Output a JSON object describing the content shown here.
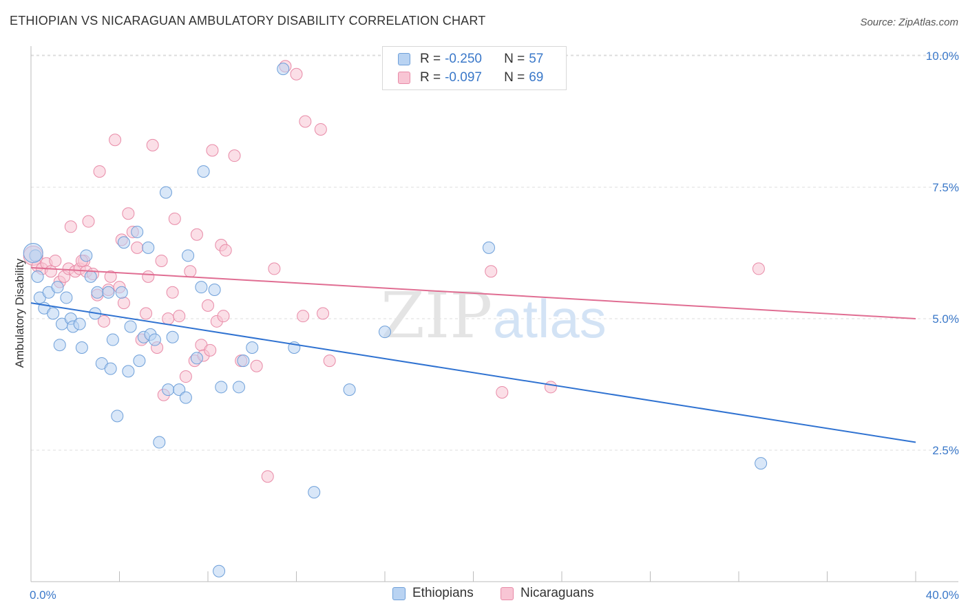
{
  "title": "ETHIOPIAN VS NICARAGUAN AMBULATORY DISABILITY CORRELATION CHART",
  "source": "Source: ZipAtlas.com",
  "watermark": {
    "zip": "ZIP",
    "atlas": "atlas"
  },
  "legend": {
    "rows": [
      {
        "r_label": "R = ",
        "r_value": "-0.250",
        "n_label": "N = ",
        "n_value": "57"
      },
      {
        "r_label": "R = ",
        "r_value": "-0.097",
        "n_label": "N = ",
        "n_value": "69"
      }
    ]
  },
  "colors": {
    "ethiopians_fill": "#b9d3f2",
    "ethiopians_stroke": "#6d9fd9",
    "ethiopians_line": "#2f72d1",
    "nicaraguans_fill": "#f8c5d4",
    "nicaraguans_stroke": "#e88aa7",
    "nicaraguans_line": "#e06d92",
    "tick_text": "#3a78c9"
  },
  "chart_data": {
    "type": "scatter",
    "title": "ETHIOPIAN VS NICARAGUAN AMBULATORY DISABILITY CORRELATION CHART",
    "xlabel": "",
    "ylabel": "Ambulatory Disability",
    "xlim": [
      0,
      40
    ],
    "ylim": [
      0,
      10.5
    ],
    "x_tick_labels": [
      "0.0%",
      "40.0%"
    ],
    "y_ticks": [
      2.5,
      5.0,
      7.5,
      10.0
    ],
    "y_tick_labels": [
      "2.5%",
      "5.0%",
      "7.5%",
      "10.0%"
    ],
    "grid": true,
    "legend_position": "top-center",
    "series": [
      {
        "name": "Ethiopians",
        "r": -0.25,
        "n": 57,
        "trend": {
          "x": [
            0,
            40
          ],
          "y": [
            5.3,
            2.65
          ]
        },
        "points": [
          [
            0.2,
            6.2
          ],
          [
            0.3,
            5.8
          ],
          [
            0.4,
            5.4
          ],
          [
            0.6,
            5.2
          ],
          [
            0.8,
            5.5
          ],
          [
            1.0,
            5.1
          ],
          [
            1.2,
            5.6
          ],
          [
            1.3,
            4.5
          ],
          [
            1.4,
            4.9
          ],
          [
            1.6,
            5.4
          ],
          [
            1.8,
            5.0
          ],
          [
            1.9,
            4.85
          ],
          [
            2.2,
            4.9
          ],
          [
            2.3,
            4.45
          ],
          [
            2.5,
            6.2
          ],
          [
            2.7,
            5.8
          ],
          [
            2.9,
            5.1
          ],
          [
            3.0,
            5.5
          ],
          [
            3.2,
            4.15
          ],
          [
            3.5,
            5.5
          ],
          [
            3.6,
            4.05
          ],
          [
            3.7,
            4.6
          ],
          [
            3.9,
            3.15
          ],
          [
            4.1,
            5.5
          ],
          [
            4.2,
            6.45
          ],
          [
            4.4,
            4.0
          ],
          [
            4.5,
            4.85
          ],
          [
            4.8,
            6.65
          ],
          [
            4.9,
            4.2
          ],
          [
            5.1,
            4.65
          ],
          [
            5.3,
            6.35
          ],
          [
            5.4,
            4.7
          ],
          [
            5.6,
            4.6
          ],
          [
            5.8,
            2.65
          ],
          [
            6.1,
            7.4
          ],
          [
            6.2,
            3.65
          ],
          [
            6.4,
            4.65
          ],
          [
            6.7,
            3.65
          ],
          [
            7.0,
            3.5
          ],
          [
            7.1,
            6.2
          ],
          [
            7.5,
            4.25
          ],
          [
            7.7,
            5.6
          ],
          [
            7.8,
            7.8
          ],
          [
            8.3,
            5.55
          ],
          [
            8.5,
            0.2
          ],
          [
            8.6,
            3.7
          ],
          [
            9.4,
            3.7
          ],
          [
            9.6,
            4.2
          ],
          [
            10.0,
            4.45
          ],
          [
            11.4,
            9.75
          ],
          [
            11.9,
            4.45
          ],
          [
            12.8,
            1.7
          ],
          [
            14.4,
            3.65
          ],
          [
            16.0,
            4.75
          ],
          [
            20.7,
            6.35
          ],
          [
            33.0,
            2.25
          ],
          [
            0.1,
            6.25
          ]
        ]
      },
      {
        "name": "Nicaraguans",
        "r": -0.097,
        "n": 69,
        "trend": {
          "x": [
            0,
            40
          ],
          "y": [
            5.97,
            5.0
          ]
        },
        "points": [
          [
            0.1,
            6.2
          ],
          [
            0.3,
            6.0
          ],
          [
            0.5,
            5.95
          ],
          [
            0.7,
            6.05
          ],
          [
            0.9,
            5.9
          ],
          [
            1.1,
            6.1
          ],
          [
            1.3,
            5.7
          ],
          [
            1.5,
            5.8
          ],
          [
            1.7,
            5.95
          ],
          [
            1.8,
            6.75
          ],
          [
            2.0,
            5.9
          ],
          [
            2.2,
            5.95
          ],
          [
            2.4,
            6.1
          ],
          [
            2.5,
            5.9
          ],
          [
            2.6,
            6.85
          ],
          [
            2.8,
            5.85
          ],
          [
            3.0,
            5.45
          ],
          [
            3.1,
            7.8
          ],
          [
            3.3,
            4.95
          ],
          [
            3.5,
            5.55
          ],
          [
            3.6,
            5.8
          ],
          [
            3.8,
            8.4
          ],
          [
            4.0,
            5.6
          ],
          [
            4.1,
            6.5
          ],
          [
            4.2,
            5.3
          ],
          [
            4.4,
            7.0
          ],
          [
            4.6,
            6.65
          ],
          [
            4.8,
            6.35
          ],
          [
            5.0,
            4.6
          ],
          [
            5.2,
            5.1
          ],
          [
            5.3,
            5.8
          ],
          [
            5.5,
            8.3
          ],
          [
            5.7,
            4.45
          ],
          [
            5.9,
            6.1
          ],
          [
            6.0,
            3.55
          ],
          [
            6.2,
            5.0
          ],
          [
            6.4,
            5.5
          ],
          [
            6.5,
            6.9
          ],
          [
            6.7,
            5.05
          ],
          [
            7.0,
            3.9
          ],
          [
            7.2,
            5.9
          ],
          [
            7.4,
            4.2
          ],
          [
            7.5,
            6.6
          ],
          [
            7.7,
            4.5
          ],
          [
            7.8,
            4.3
          ],
          [
            8.0,
            5.25
          ],
          [
            8.2,
            8.2
          ],
          [
            8.4,
            4.95
          ],
          [
            8.6,
            6.4
          ],
          [
            8.7,
            5.05
          ],
          [
            8.8,
            6.3
          ],
          [
            9.2,
            8.1
          ],
          [
            9.5,
            4.2
          ],
          [
            10.2,
            4.1
          ],
          [
            10.7,
            2.0
          ],
          [
            11.0,
            5.95
          ],
          [
            11.5,
            9.8
          ],
          [
            12.0,
            9.65
          ],
          [
            12.3,
            5.05
          ],
          [
            12.4,
            8.75
          ],
          [
            13.1,
            8.6
          ],
          [
            13.2,
            5.1
          ],
          [
            13.5,
            4.2
          ],
          [
            20.8,
            5.9
          ],
          [
            21.3,
            3.6
          ],
          [
            23.5,
            3.7
          ],
          [
            32.9,
            5.95
          ],
          [
            2.3,
            6.1
          ],
          [
            8.1,
            4.4
          ]
        ]
      }
    ]
  }
}
